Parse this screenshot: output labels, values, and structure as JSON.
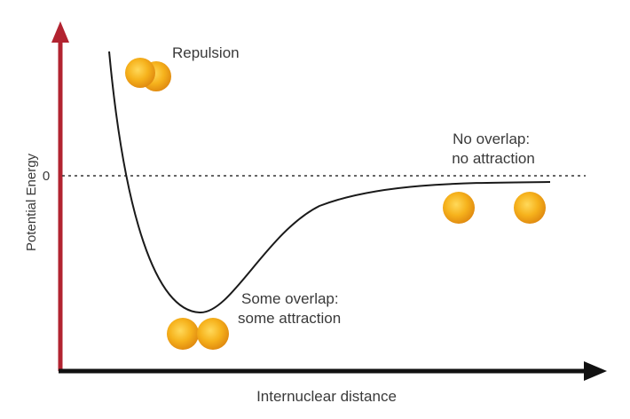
{
  "axes": {
    "ylabel": "Potential Energy",
    "xlabel": "Internuclear distance",
    "zero_label": "0",
    "y_axis_color": "#b22330",
    "x_axis_color": "#111111"
  },
  "annotations": {
    "repulsion": "Repulsion",
    "some_overlap": [
      "Some overlap:",
      "some attraction"
    ],
    "no_overlap": [
      "No overlap:",
      "no attraction"
    ]
  },
  "colors": {
    "atom_fill": "#f6b21c",
    "atom_highlight": "#ffd95a",
    "atom_edge": "#e08a10",
    "curve": "#1a1a1a"
  },
  "icons": [
    "atom-pair-overlapping",
    "atom-pair-touching",
    "atom-single"
  ]
}
